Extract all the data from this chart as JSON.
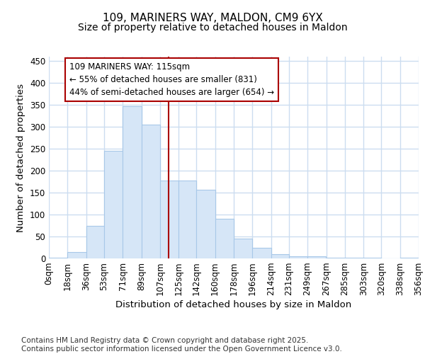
{
  "title": "109, MARINERS WAY, MALDON, CM9 6YX",
  "subtitle": "Size of property relative to detached houses in Maldon",
  "xlabel": "Distribution of detached houses by size in Maldon",
  "ylabel": "Number of detached properties",
  "bar_color": "#d6e6f7",
  "bar_edge_color": "#a8c8e8",
  "background_color": "#ffffff",
  "bin_edges": [
    0,
    18,
    36,
    53,
    71,
    89,
    107,
    125,
    142,
    160,
    178,
    196,
    214,
    231,
    249,
    267,
    285,
    303,
    320,
    338,
    356
  ],
  "bar_heights": [
    2,
    15,
    75,
    245,
    347,
    305,
    178,
    178,
    157,
    90,
    45,
    25,
    9,
    5,
    5,
    1,
    2,
    1,
    0,
    2
  ],
  "tick_labels": [
    "0sqm",
    "18sqm",
    "36sqm",
    "53sqm",
    "71sqm",
    "89sqm",
    "107sqm",
    "125sqm",
    "142sqm",
    "160sqm",
    "178sqm",
    "196sqm",
    "214sqm",
    "231sqm",
    "249sqm",
    "267sqm",
    "285sqm",
    "303sqm",
    "320sqm",
    "338sqm",
    "356sqm"
  ],
  "vline_x": 115,
  "vline_color": "#aa0000",
  "annotation_text": "109 MARINERS WAY: 115sqm\n← 55% of detached houses are smaller (831)\n44% of semi-detached houses are larger (654) →",
  "annotation_box_color": "#ffffff",
  "annotation_border_color": "#aa0000",
  "ylim": [
    0,
    460
  ],
  "yticks": [
    0,
    50,
    100,
    150,
    200,
    250,
    300,
    350,
    400,
    450
  ],
  "footer_text": "Contains HM Land Registry data © Crown copyright and database right 2025.\nContains public sector information licensed under the Open Government Licence v3.0.",
  "grid_color": "#ccddf0",
  "title_fontsize": 11,
  "subtitle_fontsize": 10,
  "axis_label_fontsize": 9.5,
  "tick_fontsize": 8.5,
  "annotation_fontsize": 8.5,
  "footer_fontsize": 7.5
}
